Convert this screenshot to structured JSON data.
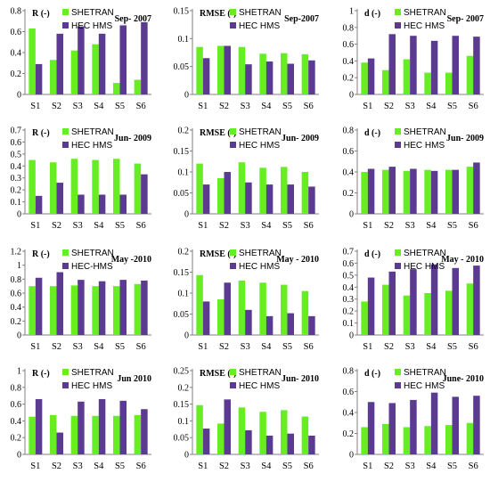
{
  "colors": {
    "shetran": "#66ee22",
    "hechms": "#5b3a92",
    "axis": "#808080"
  },
  "chart_data": [
    {
      "type": "bar",
      "title": "Sep- 2007",
      "ylabel": "R (-)",
      "categories": [
        "S1",
        "S2",
        "S3",
        "S4",
        "S5",
        "S6"
      ],
      "ylim": [
        0,
        0.8
      ],
      "yticks": [
        "0",
        "0.2",
        "0.4",
        "0.6",
        "0.8"
      ],
      "series": [
        {
          "name": "SHETRAN",
          "values": [
            0.63,
            0.33,
            0.42,
            0.48,
            0.11,
            0.14
          ]
        },
        {
          "name": "HEC HMS",
          "values": [
            0.29,
            0.58,
            0.65,
            0.58,
            0.66,
            0.69
          ]
        }
      ]
    },
    {
      "type": "bar",
      "title": "Sep-2007",
      "ylabel": "RMSE (-)",
      "categories": [
        "S1",
        "S2",
        "S3",
        "S4",
        "S5",
        "S6"
      ],
      "ylim": [
        0,
        0.15
      ],
      "yticks": [
        "0",
        "0.05",
        "0.1",
        "0.15"
      ],
      "series": [
        {
          "name": "SHETRAN",
          "values": [
            0.085,
            0.087,
            0.085,
            0.073,
            0.074,
            0.072
          ]
        },
        {
          "name": "HEC HMS",
          "values": [
            0.065,
            0.087,
            0.054,
            0.059,
            0.055,
            0.061
          ]
        }
      ]
    },
    {
      "type": "bar",
      "title": "Sep- 2007",
      "ylabel": "d (-)",
      "categories": [
        "S1",
        "S2",
        "S3",
        "S4",
        "S5",
        "S6"
      ],
      "ylim": [
        0,
        1
      ],
      "yticks": [
        "0",
        "0.2",
        "0.4",
        "0.6",
        "0.8",
        "1"
      ],
      "series": [
        {
          "name": "SHETRAN",
          "values": [
            0.38,
            0.29,
            0.42,
            0.26,
            0.26,
            0.46
          ]
        },
        {
          "name": "HEC HMS",
          "values": [
            0.43,
            0.72,
            0.7,
            0.64,
            0.7,
            0.69
          ]
        }
      ]
    },
    {
      "type": "bar",
      "title": "Jun- 2009",
      "ylabel": "R (-)",
      "categories": [
        "S1",
        "S2",
        "S3",
        "S4",
        "S5",
        "S6"
      ],
      "ylim": [
        0,
        0.7
      ],
      "yticks": [
        "0",
        "0.1",
        "0.2",
        "0.3",
        "0.4",
        "0.5",
        "0.6",
        "0.7"
      ],
      "series": [
        {
          "name": "SHETRAN",
          "values": [
            0.45,
            0.43,
            0.46,
            0.45,
            0.46,
            0.42
          ]
        },
        {
          "name": "HEC HMS",
          "values": [
            0.15,
            0.26,
            0.16,
            0.16,
            0.16,
            0.33
          ]
        }
      ]
    },
    {
      "type": "bar",
      "title": "Jun- 2009",
      "ylabel": "RMSE (-)",
      "categories": [
        "S1",
        "S2",
        "S3",
        "S4",
        "S5",
        "S6"
      ],
      "ylim": [
        0,
        0.2
      ],
      "yticks": [
        "0",
        "0.05",
        "0.1",
        "0.15",
        "0.2"
      ],
      "series": [
        {
          "name": "SHETRAN",
          "values": [
            0.12,
            0.085,
            0.123,
            0.11,
            0.112,
            0.1
          ]
        },
        {
          "name": "HEC HMS",
          "values": [
            0.07,
            0.1,
            0.075,
            0.07,
            0.07,
            0.065
          ]
        }
      ]
    },
    {
      "type": "bar",
      "title": "Jun- 2009",
      "ylabel": "d (-)",
      "categories": [
        "S1",
        "S2",
        "S3",
        "S4",
        "S5",
        "S6"
      ],
      "ylim": [
        0,
        0.8
      ],
      "yticks": [
        "0",
        "0.2",
        "0.4",
        "0.6",
        "0.8"
      ],
      "series": [
        {
          "name": "SHETRAN",
          "values": [
            0.4,
            0.42,
            0.41,
            0.42,
            0.42,
            0.45
          ]
        },
        {
          "name": "HEC HMS",
          "values": [
            0.43,
            0.45,
            0.43,
            0.41,
            0.42,
            0.49
          ]
        }
      ]
    },
    {
      "type": "bar",
      "title": "May -2010",
      "ylabel": "R (-)",
      "categories": [
        "S1",
        "S2",
        "S3",
        "S4",
        "S5",
        "S6"
      ],
      "ylim": [
        0,
        1.2
      ],
      "yticks": [
        "0",
        "0.2",
        "0.4",
        "0.6",
        "0.8",
        "1",
        "1.2"
      ],
      "series": [
        {
          "name": "SHETRAN",
          "values": [
            0.7,
            0.7,
            0.71,
            0.7,
            0.7,
            0.73
          ]
        },
        {
          "name": "HEC-HMS",
          "values": [
            0.82,
            0.9,
            0.79,
            0.77,
            0.79,
            0.78
          ]
        }
      ]
    },
    {
      "type": "bar",
      "title": "May - 2010",
      "ylabel": "RMSE (-)",
      "categories": [
        "S1",
        "S2",
        "S3",
        "S4",
        "S5",
        "S6"
      ],
      "ylim": [
        0,
        0.2
      ],
      "yticks": [
        "0",
        "0.05",
        "0.1",
        "0.15",
        "0.2"
      ],
      "series": [
        {
          "name": "SHETRAN",
          "values": [
            0.143,
            0.085,
            0.13,
            0.125,
            0.12,
            0.105
          ]
        },
        {
          "name": "HEC HMS",
          "values": [
            0.08,
            0.125,
            0.06,
            0.045,
            0.052,
            0.045
          ]
        }
      ]
    },
    {
      "type": "bar",
      "title": "May - 2010",
      "ylabel": "d (-)",
      "categories": [
        "S1",
        "S2",
        "S3",
        "S4",
        "S5",
        "S6"
      ],
      "ylim": [
        0,
        0.7
      ],
      "yticks": [
        "0",
        "0.1",
        "0.2",
        "0.3",
        "0.4",
        "0.5",
        "0.6",
        "0.7"
      ],
      "series": [
        {
          "name": "SHETRAN",
          "values": [
            0.28,
            0.42,
            0.33,
            0.35,
            0.37,
            0.43
          ]
        },
        {
          "name": "HEC HMS",
          "values": [
            0.48,
            0.53,
            0.55,
            0.59,
            0.56,
            0.58
          ]
        }
      ]
    },
    {
      "type": "bar",
      "title": "Jun  2010",
      "ylabel": "R (-)",
      "categories": [
        "S1",
        "S2",
        "S3",
        "S4",
        "S5",
        "S6"
      ],
      "ylim": [
        0,
        1
      ],
      "yticks": [
        "0",
        "0.2",
        "0.4",
        "0.6",
        "0.8",
        "1"
      ],
      "series": [
        {
          "name": "SHETRAN",
          "values": [
            0.45,
            0.47,
            0.46,
            0.46,
            0.46,
            0.47
          ]
        },
        {
          "name": "HEC HMS",
          "values": [
            0.66,
            0.26,
            0.63,
            0.66,
            0.64,
            0.54
          ]
        }
      ]
    },
    {
      "type": "bar",
      "title": "Jun- 2010",
      "ylabel": "RMSE (-)",
      "categories": [
        "S1",
        "S2",
        "S3",
        "S4",
        "S5",
        "S6"
      ],
      "ylim": [
        0,
        0.25
      ],
      "yticks": [
        "0",
        "0.05",
        "0.1",
        "0.15",
        "0.2",
        "0.25"
      ],
      "series": [
        {
          "name": "SHETRAN",
          "values": [
            0.147,
            0.092,
            0.14,
            0.127,
            0.132,
            0.113
          ]
        },
        {
          "name": "HEC HMS",
          "values": [
            0.077,
            0.164,
            0.072,
            0.056,
            0.062,
            0.056
          ]
        }
      ]
    },
    {
      "type": "bar",
      "title": "June-  2010",
      "ylabel": "d (-)",
      "categories": [
        "S1",
        "S2",
        "S3",
        "S4",
        "S5",
        "S6"
      ],
      "ylim": [
        0,
        0.8
      ],
      "yticks": [
        "0",
        "0.2",
        "0.4",
        "0.6",
        "0.8"
      ],
      "series": [
        {
          "name": "SHETRAN",
          "values": [
            0.26,
            0.29,
            0.26,
            0.27,
            0.28,
            0.3
          ]
        },
        {
          "name": "HEC HMS",
          "values": [
            0.5,
            0.49,
            0.52,
            0.59,
            0.55,
            0.56
          ]
        }
      ]
    }
  ]
}
